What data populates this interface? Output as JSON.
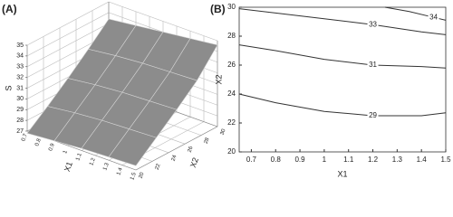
{
  "chart_data": [
    {
      "type": "surface",
      "title": "(A)",
      "x_label": "X1",
      "y_label": "X2",
      "z_label": "S",
      "x": [
        0.7,
        0.9,
        1.1,
        1.3,
        1.5
      ],
      "y": [
        20,
        22.5,
        25,
        27.5,
        30
      ],
      "z": [
        [
          26.8,
          27.0,
          27.2,
          27.3,
          27.4
        ],
        [
          28.3,
          28.6,
          28.8,
          28.9,
          29.0
        ],
        [
          29.9,
          30.2,
          30.4,
          30.5,
          30.6
        ],
        [
          31.6,
          31.9,
          32.1,
          32.2,
          32.3
        ],
        [
          33.4,
          33.7,
          34.0,
          34.3,
          34.6
        ]
      ],
      "xlim": [
        0.7,
        1.5
      ],
      "xticks": [
        0.7,
        0.8,
        0.9,
        1,
        1.1,
        1.2,
        1.3,
        1.4,
        1.5
      ],
      "ylim": [
        20,
        30
      ],
      "yticks": [
        20,
        22,
        24,
        26,
        28,
        30
      ],
      "zlim": [
        27,
        35
      ],
      "zticks": [
        27,
        28,
        29,
        30,
        31,
        32,
        33,
        34,
        35
      ],
      "color": "#8c8c8c",
      "edge_color": "#d4d4d4",
      "grid": true
    },
    {
      "type": "contour",
      "title": "(B)",
      "x_label": "X1",
      "y_label": "X2",
      "xlim": [
        0.65,
        1.5
      ],
      "xticks": [
        0.7,
        0.8,
        0.9,
        1,
        1.1,
        1.2,
        1.3,
        1.4,
        1.5
      ],
      "ylim": [
        20,
        30
      ],
      "yticks": [
        20,
        22,
        24,
        26,
        28,
        30
      ],
      "color": "#333333",
      "contours": [
        {
          "level": 34,
          "x": [
            1.25,
            1.35,
            1.45,
            1.5
          ],
          "y": [
            30,
            29.7,
            29.3,
            29.1
          ]
        },
        {
          "level": 33,
          "x": [
            0.65,
            0.8,
            1.0,
            1.2,
            1.4,
            1.5
          ],
          "y": [
            29.9,
            29.6,
            29.2,
            28.8,
            28.3,
            28.1
          ]
        },
        {
          "level": 31,
          "x": [
            0.65,
            0.8,
            1.0,
            1.2,
            1.4,
            1.5
          ],
          "y": [
            27.4,
            27.0,
            26.4,
            26.0,
            25.9,
            25.8
          ]
        },
        {
          "level": 29,
          "x": [
            0.65,
            0.8,
            1.0,
            1.2,
            1.4,
            1.5
          ],
          "y": [
            24.0,
            23.4,
            22.8,
            22.5,
            22.5,
            22.7
          ]
        }
      ]
    }
  ]
}
